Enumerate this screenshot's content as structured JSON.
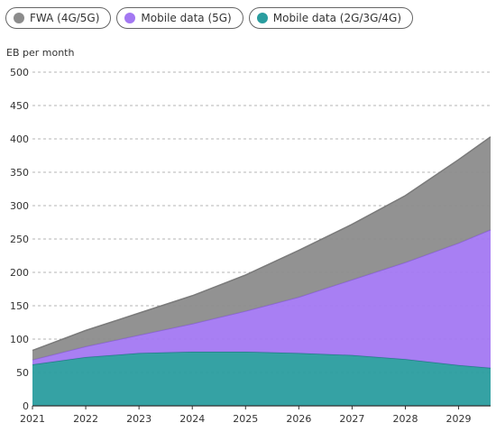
{
  "chart_data": {
    "type": "area",
    "stacked": true,
    "ylabel": "EB per month",
    "x": [
      2021,
      2022,
      2023,
      2024,
      2025,
      2026,
      2027,
      2028,
      2029,
      2029.6
    ],
    "xticks": [
      "2021",
      "2022",
      "2023",
      "2024",
      "2025",
      "2026",
      "2027",
      "2028",
      "2029"
    ],
    "yticks": [
      "0",
      "50",
      "100",
      "150",
      "200",
      "250",
      "300",
      "350",
      "400",
      "450",
      "500"
    ],
    "ylim": [
      0,
      500
    ],
    "xlim": [
      2021,
      2029.6
    ],
    "grid": "horizontal-dashed",
    "legend_position": "top",
    "series": [
      {
        "name": "Mobile data (2G/3G/4G)",
        "color": "#2a9d9f",
        "values": [
          62,
          73,
          79,
          81,
          81,
          79,
          76,
          70,
          61,
          57
        ]
      },
      {
        "name": "Mobile data (5G)",
        "color": "#a378f2",
        "values": [
          7,
          16,
          27,
          42,
          61,
          84,
          113,
          145,
          183,
          207
        ]
      },
      {
        "name": "FWA (4G/5G)",
        "color": "#8c8c8c",
        "values": [
          14,
          24,
          33,
          42,
          54,
          70,
          83,
          100,
          125,
          139
        ]
      }
    ]
  },
  "legend": [
    {
      "label": "FWA (4G/5G)",
      "color": "#8c8c8c"
    },
    {
      "label": "Mobile data (5G)",
      "color": "#a378f2"
    },
    {
      "label": "Mobile data (2G/3G/4G)",
      "color": "#2a9d9f"
    }
  ]
}
